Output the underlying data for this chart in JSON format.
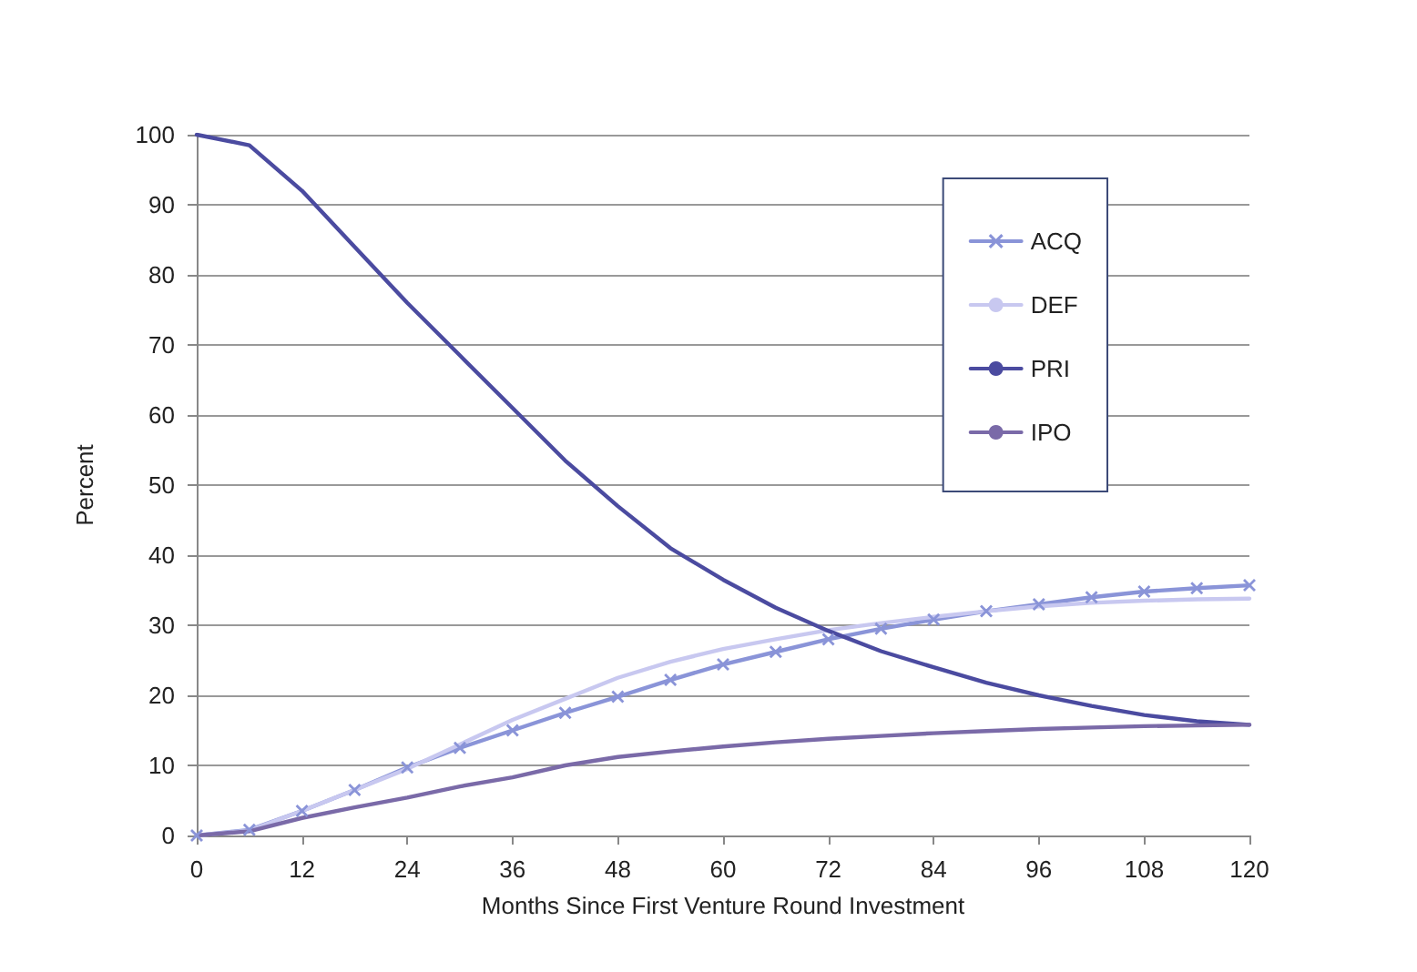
{
  "chart_data": {
    "type": "line",
    "xlabel": "Months Since First Venture Round Investment",
    "ylabel": "Percent",
    "x": [
      0,
      6,
      12,
      18,
      24,
      30,
      36,
      42,
      48,
      54,
      60,
      66,
      72,
      78,
      84,
      90,
      96,
      102,
      108,
      114,
      120
    ],
    "series": [
      {
        "name": "ACQ",
        "color": "#8a94d8",
        "marker": "cross",
        "values": [
          0,
          0.8,
          3.5,
          6.5,
          9.7,
          12.5,
          15,
          17.5,
          19.8,
          22.2,
          24.4,
          26.2,
          28,
          29.5,
          30.8,
          32,
          33,
          34,
          34.8,
          35.3,
          35.7
        ]
      },
      {
        "name": "DEF",
        "color": "#c8c8f0",
        "values": [
          0,
          0.7,
          3.5,
          6.5,
          9.5,
          13,
          16.5,
          19.5,
          22.5,
          24.8,
          26.6,
          28,
          29.3,
          30.3,
          31.2,
          32,
          32.7,
          33.2,
          33.5,
          33.7,
          33.8
        ]
      },
      {
        "name": "PRI",
        "color": "#4b4ba0",
        "values": [
          100,
          98.5,
          92,
          84,
          76,
          68.5,
          61,
          53.5,
          47,
          41,
          36.5,
          32.5,
          29.2,
          26.3,
          24,
          21.8,
          20,
          18.5,
          17.2,
          16.3,
          15.8
        ]
      },
      {
        "name": "IPO",
        "color": "#7a6aa8",
        "values": [
          0,
          0.6,
          2.5,
          4,
          5.4,
          7,
          8.3,
          10,
          11.2,
          12,
          12.7,
          13.3,
          13.8,
          14.2,
          14.6,
          14.9,
          15.2,
          15.4,
          15.6,
          15.7,
          15.8
        ]
      }
    ],
    "xlim": [
      0,
      120
    ],
    "xticks": [
      0,
      12,
      24,
      36,
      48,
      60,
      72,
      84,
      96,
      108,
      120
    ],
    "ylim": [
      0,
      100
    ],
    "yticks": [
      0,
      10,
      20,
      30,
      40,
      50,
      60,
      70,
      80,
      90,
      100
    ],
    "grid": "y",
    "legend": "top right",
    "marker": "none",
    "line_style": "solid"
  }
}
